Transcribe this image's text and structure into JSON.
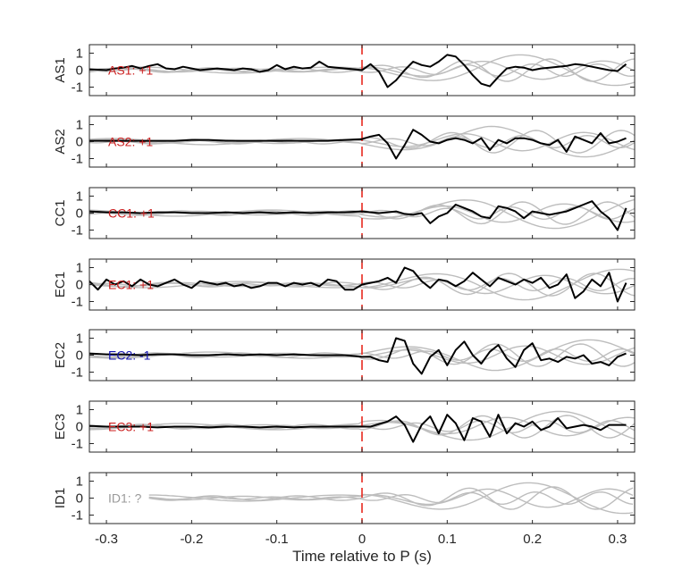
{
  "chart_data": {
    "type": "line",
    "xlabel": "Time relative to P (s)",
    "xlim": [
      -0.32,
      0.32
    ],
    "xticks": [
      "-0.3",
      "-0.2",
      "-0.1",
      "0",
      "0.1",
      "0.2",
      "0.3"
    ],
    "xtick_values": [
      -0.3,
      -0.2,
      -0.1,
      0,
      0.1,
      0.2,
      0.3
    ],
    "ylim": [
      -1.5,
      1.5
    ],
    "yticks": [
      "1",
      "0",
      "-1"
    ],
    "ytick_values": [
      1,
      0,
      -1
    ],
    "marker_x": 0,
    "marker_color": "#e8291f",
    "colors": {
      "positive": "#cc1f1f",
      "negative": "#1414b0",
      "unknown": "#9a9a9a",
      "main_trace": "#000000",
      "background_traces": "#bdbdbd"
    },
    "panels": [
      {
        "station": "AS1",
        "label": "AS1: +1",
        "polarity": "positive",
        "x": [
          -0.32,
          -0.3,
          -0.29,
          -0.28,
          -0.27,
          -0.26,
          -0.25,
          -0.24,
          -0.23,
          -0.22,
          -0.21,
          -0.2,
          -0.19,
          -0.18,
          -0.17,
          -0.16,
          -0.15,
          -0.14,
          -0.13,
          -0.12,
          -0.11,
          -0.1,
          -0.09,
          -0.08,
          -0.07,
          -0.06,
          -0.05,
          -0.04,
          -0.03,
          -0.02,
          -0.01,
          0.0,
          0.01,
          0.02,
          0.03,
          0.04,
          0.05,
          0.06,
          0.07,
          0.08,
          0.09,
          0.1,
          0.11,
          0.12,
          0.13,
          0.14,
          0.15,
          0.16,
          0.17,
          0.18,
          0.19,
          0.2,
          0.21,
          0.22,
          0.23,
          0.24,
          0.25,
          0.26,
          0.27,
          0.28,
          0.29,
          0.3,
          0.31
        ],
        "y": [
          0.05,
          0.0,
          0.1,
          0.15,
          0.25,
          0.1,
          0.25,
          0.35,
          0.1,
          0.05,
          0.2,
          0.1,
          0.0,
          0.05,
          0.1,
          0.05,
          0.0,
          0.1,
          0.05,
          -0.1,
          0.0,
          0.3,
          0.05,
          0.2,
          0.1,
          0.15,
          0.5,
          0.2,
          0.15,
          0.1,
          0.05,
          0.0,
          0.35,
          -0.1,
          -1.0,
          -0.6,
          0.0,
          0.5,
          0.3,
          0.2,
          0.5,
          0.9,
          0.8,
          0.3,
          -0.3,
          -0.8,
          -0.95,
          -0.4,
          0.1,
          0.2,
          0.15,
          0.0,
          0.1,
          0.15,
          0.2,
          0.25,
          0.35,
          0.3,
          0.2,
          0.1,
          0.0,
          -0.05,
          0.35
        ]
      },
      {
        "station": "AS2",
        "label": "AS2: +1",
        "polarity": "positive",
        "x": [
          -0.32,
          -0.3,
          -0.28,
          -0.26,
          -0.24,
          -0.22,
          -0.2,
          -0.18,
          -0.16,
          -0.14,
          -0.12,
          -0.1,
          -0.08,
          -0.06,
          -0.04,
          -0.02,
          0.0,
          0.01,
          0.02,
          0.03,
          0.04,
          0.05,
          0.06,
          0.07,
          0.08,
          0.09,
          0.1,
          0.11,
          0.12,
          0.13,
          0.14,
          0.15,
          0.16,
          0.17,
          0.18,
          0.19,
          0.2,
          0.21,
          0.22,
          0.23,
          0.24,
          0.25,
          0.26,
          0.27,
          0.28,
          0.29,
          0.3,
          0.31
        ],
        "y": [
          0.05,
          0.05,
          0.05,
          0.05,
          0.05,
          0.05,
          0.1,
          0.1,
          0.05,
          0.05,
          0.05,
          0.05,
          0.05,
          0.05,
          0.05,
          0.1,
          0.15,
          0.3,
          0.4,
          -0.1,
          -1.0,
          -0.2,
          0.7,
          0.4,
          0.0,
          -0.1,
          0.1,
          0.2,
          0.1,
          -0.1,
          0.2,
          -0.5,
          0.1,
          -0.1,
          0.2,
          0.2,
          0.1,
          -0.1,
          -0.2,
          0.1,
          -0.6,
          0.3,
          0.1,
          -0.1,
          0.5,
          -0.1,
          0.0,
          0.2
        ]
      },
      {
        "station": "CC1",
        "label": "CC1: +1",
        "polarity": "positive",
        "x": [
          -0.32,
          -0.3,
          -0.28,
          -0.26,
          -0.24,
          -0.22,
          -0.2,
          -0.18,
          -0.16,
          -0.14,
          -0.12,
          -0.1,
          -0.08,
          -0.06,
          -0.04,
          -0.02,
          0.0,
          0.01,
          0.02,
          0.03,
          0.04,
          0.05,
          0.06,
          0.07,
          0.08,
          0.09,
          0.1,
          0.11,
          0.12,
          0.13,
          0.14,
          0.15,
          0.16,
          0.17,
          0.18,
          0.19,
          0.2,
          0.21,
          0.22,
          0.23,
          0.24,
          0.25,
          0.26,
          0.27,
          0.28,
          0.29,
          0.3,
          0.31
        ],
        "y": [
          0.1,
          0.05,
          0.05,
          0.0,
          0.05,
          0.05,
          0.0,
          0.0,
          0.05,
          0.0,
          0.05,
          0.0,
          0.05,
          0.0,
          0.05,
          0.05,
          0.1,
          0.05,
          0.0,
          0.05,
          0.1,
          -0.05,
          -0.1,
          0.0,
          -0.6,
          -0.2,
          0.0,
          0.5,
          0.3,
          0.1,
          -0.2,
          -0.3,
          0.4,
          0.3,
          0.1,
          -0.3,
          0.1,
          0.0,
          -0.1,
          0.0,
          0.1,
          0.3,
          0.5,
          0.7,
          0.1,
          -0.3,
          -1.0,
          0.3
        ]
      },
      {
        "station": "EC1",
        "label": "EC1: +1",
        "polarity": "positive",
        "x": [
          -0.32,
          -0.31,
          -0.3,
          -0.29,
          -0.28,
          -0.27,
          -0.26,
          -0.25,
          -0.24,
          -0.23,
          -0.22,
          -0.21,
          -0.2,
          -0.19,
          -0.18,
          -0.17,
          -0.16,
          -0.15,
          -0.14,
          -0.13,
          -0.12,
          -0.11,
          -0.1,
          -0.09,
          -0.08,
          -0.07,
          -0.06,
          -0.05,
          -0.04,
          -0.03,
          -0.02,
          -0.01,
          0.0,
          0.01,
          0.02,
          0.03,
          0.04,
          0.05,
          0.06,
          0.07,
          0.08,
          0.09,
          0.1,
          0.11,
          0.12,
          0.13,
          0.14,
          0.15,
          0.16,
          0.17,
          0.18,
          0.19,
          0.2,
          0.21,
          0.22,
          0.23,
          0.24,
          0.25,
          0.26,
          0.27,
          0.28,
          0.29,
          0.3,
          0.31
        ],
        "y": [
          0.2,
          -0.3,
          0.3,
          0.0,
          0.2,
          -0.1,
          0.3,
          0.0,
          -0.1,
          0.1,
          0.3,
          0.0,
          -0.2,
          0.2,
          0.1,
          0.0,
          0.1,
          -0.1,
          0.0,
          -0.2,
          -0.1,
          0.1,
          0.1,
          -0.1,
          0.1,
          0.0,
          0.1,
          -0.1,
          0.3,
          0.2,
          -0.3,
          -0.3,
          0.0,
          0.1,
          0.2,
          0.4,
          0.1,
          1.0,
          0.8,
          0.2,
          -0.2,
          0.3,
          0.2,
          -0.1,
          0.2,
          0.7,
          0.3,
          -0.1,
          0.4,
          0.2,
          0.0,
          0.3,
          0.1,
          0.4,
          -0.2,
          0.0,
          0.6,
          -0.8,
          -0.4,
          0.3,
          -0.1,
          0.7,
          -1.0,
          0.1
        ]
      },
      {
        "station": "EC2",
        "label": "EC2: -1",
        "polarity": "negative",
        "x": [
          -0.32,
          -0.3,
          -0.28,
          -0.26,
          -0.24,
          -0.22,
          -0.2,
          -0.18,
          -0.16,
          -0.14,
          -0.12,
          -0.1,
          -0.08,
          -0.06,
          -0.04,
          -0.02,
          0.0,
          0.01,
          0.02,
          0.03,
          0.04,
          0.05,
          0.06,
          0.07,
          0.08,
          0.09,
          0.1,
          0.11,
          0.12,
          0.13,
          0.14,
          0.15,
          0.16,
          0.17,
          0.18,
          0.19,
          0.2,
          0.21,
          0.22,
          0.23,
          0.24,
          0.25,
          0.26,
          0.27,
          0.28,
          0.29,
          0.3,
          0.31
        ],
        "y": [
          0.1,
          0.05,
          0.05,
          0.0,
          0.05,
          0.05,
          0.0,
          0.0,
          0.05,
          0.0,
          0.05,
          0.0,
          0.05,
          0.0,
          0.0,
          0.0,
          -0.1,
          -0.1,
          -0.3,
          -0.4,
          1.0,
          0.85,
          -0.5,
          -1.1,
          -0.1,
          0.3,
          -0.6,
          0.3,
          0.8,
          0.0,
          -0.5,
          0.2,
          0.6,
          -0.2,
          -0.7,
          0.3,
          0.7,
          -0.3,
          -0.2,
          -0.4,
          -0.1,
          -0.2,
          0.0,
          -0.5,
          -0.4,
          -0.6,
          -0.1,
          0.1
        ]
      },
      {
        "station": "EC3",
        "label": "EC3: +1",
        "polarity": "positive",
        "x": [
          -0.32,
          -0.3,
          -0.28,
          -0.26,
          -0.24,
          -0.22,
          -0.2,
          -0.18,
          -0.16,
          -0.14,
          -0.12,
          -0.1,
          -0.08,
          -0.06,
          -0.04,
          -0.02,
          0.0,
          0.01,
          0.02,
          0.03,
          0.04,
          0.05,
          0.06,
          0.07,
          0.08,
          0.09,
          0.1,
          0.11,
          0.12,
          0.13,
          0.14,
          0.15,
          0.16,
          0.17,
          0.18,
          0.19,
          0.2,
          0.21,
          0.22,
          0.23,
          0.24,
          0.25,
          0.26,
          0.27,
          0.28,
          0.29,
          0.3,
          0.31
        ],
        "y": [
          0.05,
          0.0,
          0.0,
          0.0,
          -0.05,
          0.0,
          0.0,
          -0.05,
          0.0,
          0.0,
          -0.05,
          0.0,
          -0.05,
          0.0,
          0.0,
          0.0,
          0.0,
          0.0,
          0.15,
          0.3,
          0.6,
          0.1,
          -0.9,
          0.1,
          0.6,
          -0.4,
          0.7,
          0.2,
          -0.8,
          0.5,
          0.3,
          -0.6,
          0.7,
          -0.4,
          0.2,
          0.0,
          0.3,
          -0.2,
          0.0,
          0.5,
          -0.1,
          0.0,
          0.1,
          0.0,
          -0.2,
          0.1,
          0.1,
          0.1
        ]
      },
      {
        "station": "ID1",
        "label": "ID1: ?",
        "polarity": "unknown",
        "x": [],
        "y": []
      }
    ]
  }
}
